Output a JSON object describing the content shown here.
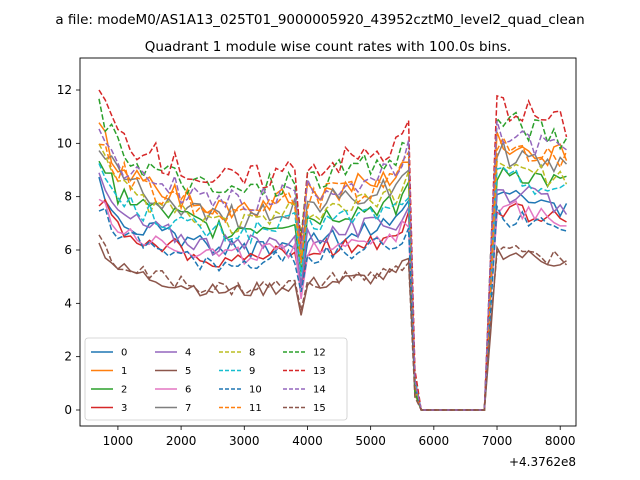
{
  "chart_data": {
    "type": "line",
    "suptitle": "a file: modeM0/AS1A13_025T01_9000005920_43952cztM0_level2_quad_clean",
    "title": "Quadrant 1 module wise count rates with 100.0s bins.",
    "xlabel": "",
    "ylabel": "",
    "x_offset_label": "+4.3762e8",
    "xlim": [
      400,
      8250
    ],
    "ylim": [
      -0.6,
      13.2
    ],
    "xticks": [
      1000,
      2000,
      3000,
      4000,
      5000,
      6000,
      7000,
      8000
    ],
    "yticks": [
      0,
      2,
      4,
      6,
      8,
      10,
      12
    ],
    "grid": false,
    "legend": {
      "placement": "lower-left",
      "columns": 4
    },
    "x_keypoints": [
      700,
      1000,
      1500,
      2000,
      2500,
      3000,
      3500,
      3800,
      3900,
      4000,
      4500,
      5000,
      5400,
      5500,
      5600,
      5700,
      5750,
      5800,
      6800,
      6900,
      7000,
      7500,
      8100
    ],
    "shape": [
      1.0,
      0.86,
      0.8,
      0.76,
      0.72,
      0.72,
      0.74,
      0.76,
      0.56,
      0.76,
      0.78,
      0.8,
      0.82,
      0.86,
      0.9,
      0.1,
      0.03,
      0.0,
      0.0,
      0.5,
      0.96,
      0.93,
      0.89
    ],
    "series": [
      {
        "name": "0",
        "color": "#1f77b4",
        "dash": "solid",
        "level": 8.4
      },
      {
        "name": "1",
        "color": "#ff7f0e",
        "dash": "solid",
        "level": 10.6
      },
      {
        "name": "2",
        "color": "#2ca02c",
        "dash": "solid",
        "level": 9.4
      },
      {
        "name": "3",
        "color": "#d62728",
        "dash": "solid",
        "level": 7.9
      },
      {
        "name": "4",
        "color": "#9467bd",
        "dash": "solid",
        "level": 8.6
      },
      {
        "name": "5",
        "color": "#8c564b",
        "dash": "solid",
        "level": 6.2
      },
      {
        "name": "6",
        "color": "#e377c2",
        "dash": "solid",
        "level": 8.0
      },
      {
        "name": "7",
        "color": "#7f7f7f",
        "dash": "solid",
        "level": 10.1
      },
      {
        "name": "8",
        "color": "#bcbd22",
        "dash": "dashed",
        "level": 9.7
      },
      {
        "name": "9",
        "color": "#17becf",
        "dash": "dashed",
        "level": 9.2
      },
      {
        "name": "10",
        "color": "#1f77b4",
        "dash": "dashed",
        "level": 7.6
      },
      {
        "name": "11",
        "color": "#ff7f0e",
        "dash": "dashed",
        "level": 10.4
      },
      {
        "name": "12",
        "color": "#2ca02c",
        "dash": "dashed",
        "level": 11.4
      },
      {
        "name": "13",
        "color": "#d62728",
        "dash": "dashed",
        "level": 12.0
      },
      {
        "name": "14",
        "color": "#9467bd",
        "dash": "dashed",
        "level": 10.8
      },
      {
        "name": "15",
        "color": "#8c564b",
        "dash": "dashed",
        "level": 6.3
      }
    ]
  }
}
